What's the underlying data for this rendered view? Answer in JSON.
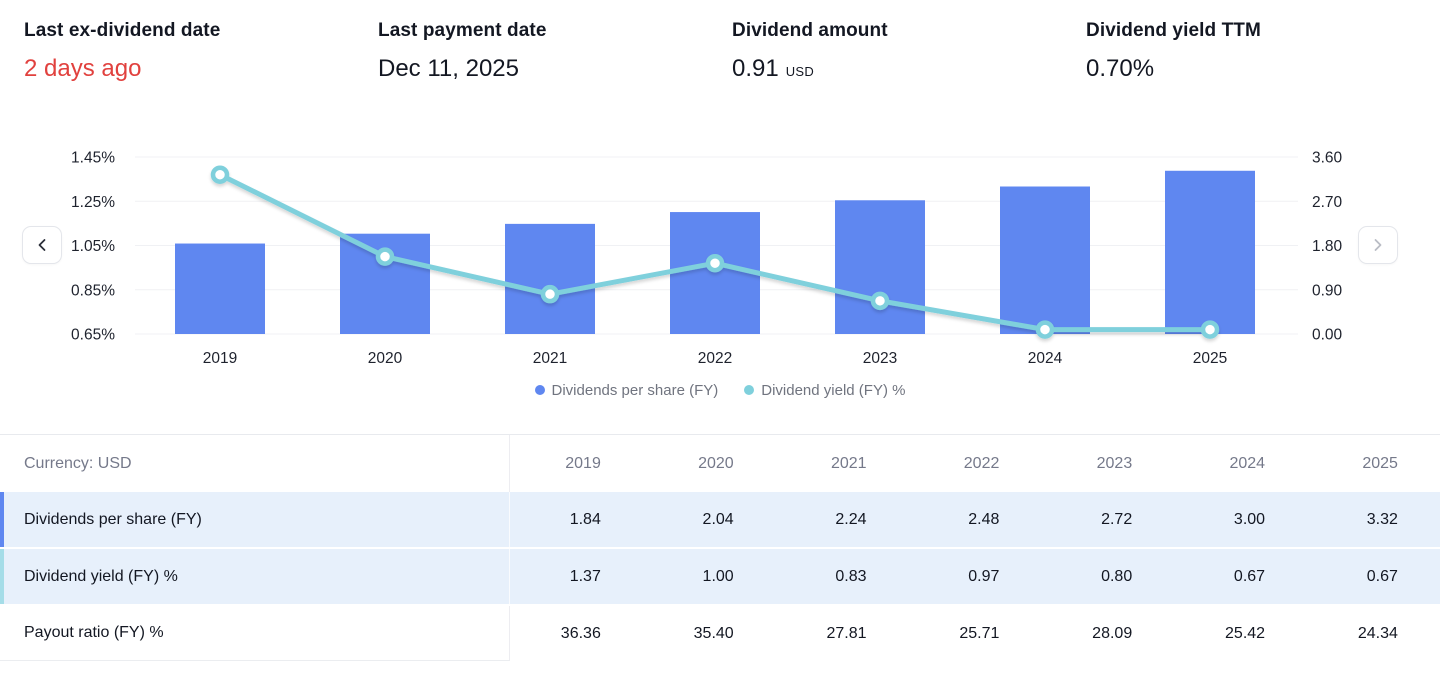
{
  "stats": [
    {
      "label": "Last ex-dividend date",
      "value": "2 days ago",
      "value_color": "#e1413e"
    },
    {
      "label": "Last payment date",
      "value": "Dec 11, 2025"
    },
    {
      "label": "Dividend amount",
      "value": "0.91",
      "suffix": "USD"
    },
    {
      "label": "Dividend yield TTM",
      "value": "0.70%"
    }
  ],
  "chart_data": {
    "type": "bar",
    "subtype": "combo bar+line, dual axis",
    "categories": [
      "2019",
      "2020",
      "2021",
      "2022",
      "2023",
      "2024",
      "2025"
    ],
    "series": [
      {
        "name": "Dividends per share (FY)",
        "kind": "bar",
        "axis": "right",
        "color": "#5f87f0",
        "values": [
          1.84,
          2.04,
          2.24,
          2.48,
          2.72,
          3.0,
          3.32
        ]
      },
      {
        "name": "Dividend yield (FY) %",
        "kind": "line",
        "axis": "left",
        "color": "#7fd0dc",
        "values": [
          1.37,
          1.0,
          0.83,
          0.97,
          0.8,
          0.67,
          0.67
        ]
      }
    ],
    "left_axis": {
      "ticks": [
        "1.45%",
        "1.25%",
        "1.05%",
        "0.85%",
        "0.65%"
      ],
      "min": 0.65,
      "max": 1.45
    },
    "right_axis": {
      "ticks": [
        "3.60",
        "2.70",
        "1.80",
        "0.90",
        "0.00"
      ],
      "min": 0.0,
      "max": 3.6
    },
    "grid": true,
    "legend_position": "bottom",
    "gridline_color": "#f0f1f4",
    "axis_text_color": "#1e222d"
  },
  "table": {
    "corner_label": "Currency: USD",
    "columns": [
      "2019",
      "2020",
      "2021",
      "2022",
      "2023",
      "2024",
      "2025"
    ],
    "rows": [
      {
        "label": "Dividends per share (FY)",
        "values": [
          "1.84",
          "2.04",
          "2.24",
          "2.48",
          "2.72",
          "3.00",
          "3.32"
        ],
        "highlighted": true,
        "accent": "#5f87f0"
      },
      {
        "label": "Dividend yield (FY) %",
        "values": [
          "1.37",
          "1.00",
          "0.83",
          "0.97",
          "0.80",
          "0.67",
          "0.67"
        ],
        "highlighted": true,
        "accent": "#a5dde8"
      },
      {
        "label": "Payout ratio (FY) %",
        "values": [
          "36.36",
          "35.40",
          "27.81",
          "25.71",
          "28.09",
          "25.42",
          "24.34"
        ],
        "highlighted": false,
        "accent": ""
      }
    ]
  }
}
